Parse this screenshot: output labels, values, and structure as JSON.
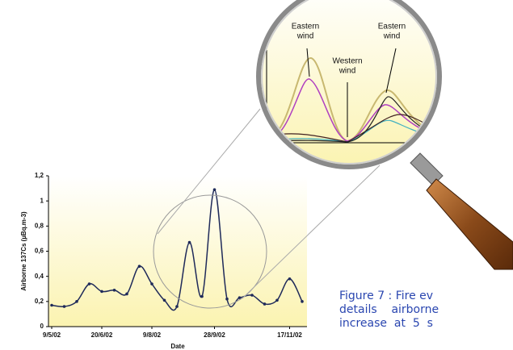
{
  "chart_data": {
    "type": "line",
    "ylabel": "Airborne 137Cs (µBq.m-3)",
    "xlabel": "Date",
    "categories": [
      "9/5/02",
      null,
      null,
      null,
      "20/6/02",
      null,
      null,
      null,
      "9/8/02",
      null,
      null,
      null,
      null,
      "28/9/02",
      null,
      null,
      null,
      null,
      null,
      "17/11/02",
      null
    ],
    "values": [
      0.17,
      0.16,
      0.2,
      0.34,
      0.28,
      0.29,
      0.26,
      0.48,
      0.34,
      0.21,
      0.16,
      0.67,
      0.24,
      1.09,
      0.22,
      0.23,
      0.25,
      0.18,
      0.21,
      0.38,
      0.2
    ],
    "color": "#1f2a5a",
    "ylim": [
      0,
      1.2
    ],
    "yticks": [
      0,
      {
        "value": 0.2,
        "label": "0,2"
      },
      {
        "value": 0.4,
        "label": "0,4"
      },
      {
        "value": 0.6,
        "label": "0,6"
      },
      {
        "value": 0.8,
        "label": "0,8"
      },
      1,
      {
        "value": 1.2,
        "label": "1,2"
      }
    ],
    "annotations": [
      [
        "Eastern",
        "wind"
      ],
      [
        "Western",
        "wind"
      ],
      [
        "Eastern",
        "wind"
      ]
    ]
  },
  "caption": [
    "Figure 7 : Fire ev",
    "details    airborne",
    "increase  at  5  s"
  ]
}
